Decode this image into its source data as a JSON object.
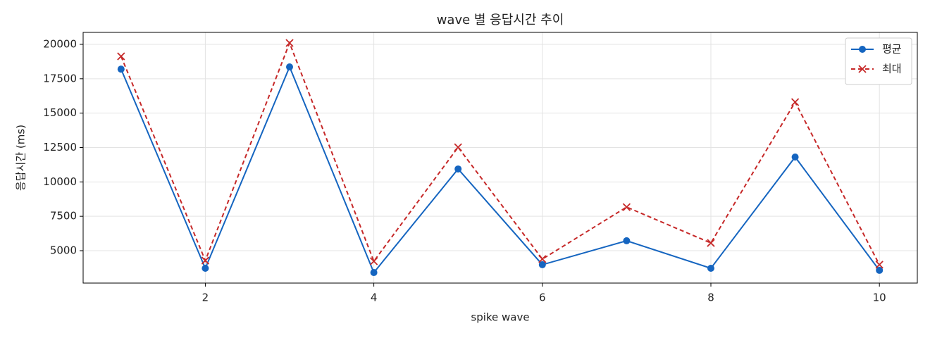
{
  "chart_data": {
    "type": "line",
    "title": "wave 별 응답시간 추이",
    "xlabel": "spike wave",
    "ylabel": "응답시간 (ms)",
    "x": [
      1,
      2,
      3,
      4,
      5,
      6,
      7,
      8,
      9,
      10
    ],
    "series": [
      {
        "name": "평균",
        "color": "#1565c0",
        "marker": "circle",
        "dash": false,
        "values": [
          18200,
          3720,
          18360,
          3410,
          10940,
          3980,
          5720,
          3720,
          11810,
          3570
        ]
      },
      {
        "name": "최대",
        "color": "#c62828",
        "marker": "x",
        "dash": true,
        "values": [
          19130,
          4280,
          20100,
          4230,
          12520,
          4390,
          8170,
          5560,
          15800,
          3980
        ]
      }
    ],
    "xlim": [
      0.55,
      10.45
    ],
    "xticks": [
      2,
      4,
      6,
      8,
      10
    ],
    "ylim": [
      2645,
      20870
    ],
    "yticks": [
      5000,
      7500,
      10000,
      12500,
      15000,
      17500,
      20000
    ],
    "grid": true,
    "legend": "upper right"
  }
}
